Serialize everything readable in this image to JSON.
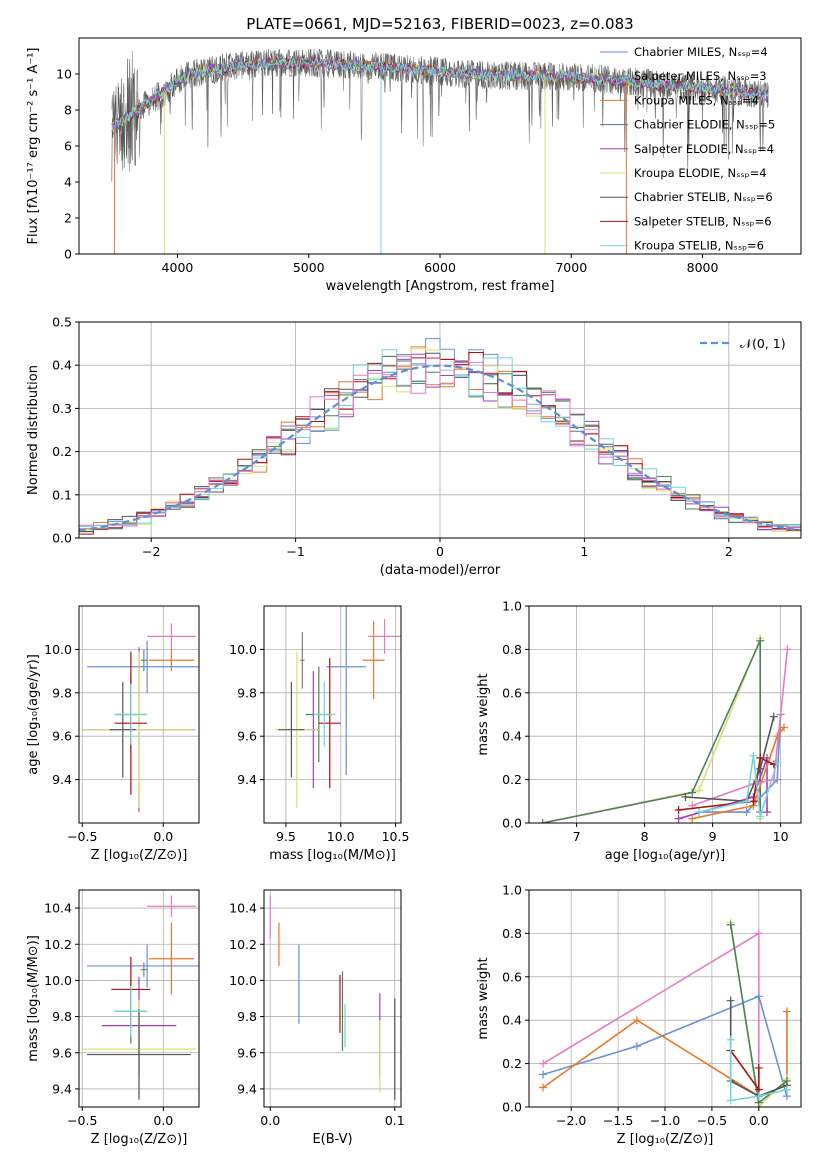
{
  "figure_title": "PLATE=0661, MJD=52163, FIBERID=0023, z=0.083",
  "colors": {
    "chabrier_miles": "#6a8fdc",
    "salpeter_miles": "#808080",
    "kroupa_miles": "#e8782a",
    "chabrier_elodie": "#4f7f5f",
    "salpeter_elodie": "#a040c0",
    "kroupa_elodie": "#d8e070",
    "chabrier_stelib": "#555555",
    "salpeter_stelib": "#b01010",
    "kroupa_stelib": "#6fd6d8",
    "pink": "#e87ac0",
    "normal": "#5b8fd6"
  },
  "chart_data": [
    {
      "id": "spectrum",
      "type": "line",
      "xlabel": "wavelength [Angstrom, rest frame]",
      "ylabel": "Flux [fλ10⁻¹⁷ erg cm⁻² s⁻¹ A⁻¹]",
      "xlim": [
        3250,
        8750
      ],
      "ylim": [
        0,
        12
      ],
      "xticks": [
        "4000",
        "5000",
        "6000",
        "7000",
        "8000"
      ],
      "yticks": [
        "0",
        "2",
        "4",
        "6",
        "8",
        "10"
      ],
      "legend_position": "top-right",
      "legend": [
        "Chabrier MILES, N_SSP=4",
        "Salpeter MILES, N_SSP=3",
        "Kroupa MILES, N_SSP=4",
        "Chabrier ELODIE, N_SSP=5",
        "Salpeter ELODIE, N_SSP=4",
        "Kroupa ELODIE, N_SSP=4",
        "Chabrier STELIB, N_SSP=6",
        "Salpeter STELIB, N_SSP=6",
        "Kroupa STELIB, N_SSP=6"
      ],
      "continuum": {
        "wavelength": [
          3500,
          3700,
          3900,
          4000,
          4100,
          4300,
          4500,
          4700,
          5000,
          5300,
          5600,
          5900,
          6200,
          6500,
          6800,
          7100,
          7400,
          7700,
          8000,
          8300,
          8500
        ],
        "flux": [
          7.0,
          8.0,
          9.0,
          9.6,
          10.0,
          10.3,
          10.5,
          10.6,
          10.6,
          10.5,
          10.4,
          10.2,
          10.0,
          9.9,
          9.9,
          9.8,
          9.6,
          9.4,
          9.2,
          9.0,
          8.8
        ]
      }
    },
    {
      "id": "residuals",
      "type": "bar",
      "xlabel": "(data-model)/error",
      "ylabel": "Normed distribution",
      "xlim": [
        -2.5,
        2.5
      ],
      "ylim": [
        0,
        0.5
      ],
      "xticks": [
        "−2",
        "−1",
        "0",
        "1",
        "2"
      ],
      "yticks": [
        "0.0",
        "0.1",
        "0.2",
        "0.3",
        "0.4",
        "0.5"
      ],
      "grid": true,
      "legend_position": "top-right",
      "legend": [
        "𝒩(0, 1)"
      ],
      "bins": [
        -2.5,
        2.5,
        50
      ],
      "normal_curve": {
        "mean": 0,
        "sigma": 1
      }
    },
    {
      "id": "age_vs_Z",
      "type": "scatter",
      "xlabel": "Z [log₁₀(Z/Z⊙)]",
      "ylabel": "age  [log₁₀(age/yr)]",
      "xlim": [
        -0.52,
        0.22
      ],
      "ylim": [
        9.2,
        10.2
      ],
      "xticks": [
        "−0.5",
        "0.0"
      ],
      "yticks": [
        "9.4",
        "9.6",
        "9.8",
        "10.0"
      ],
      "grid": true,
      "points": [
        {
          "x": -0.1,
          "y": 9.92,
          "xerr": 0.37,
          "yerr": 0.12,
          "c": "chabrier_miles"
        },
        {
          "x": 0.05,
          "y": 9.95,
          "xerr": 0.14,
          "yerr": 0.05,
          "c": "kroupa_miles"
        },
        {
          "x": -0.12,
          "y": 9.95,
          "xerr": 0.02,
          "yerr": 0.05,
          "c": "salpeter_miles"
        },
        {
          "x": -0.2,
          "y": 9.7,
          "xerr": 0.1,
          "yerr": 0.18,
          "c": "chabrier_elodie"
        },
        {
          "x": -0.15,
          "y": 9.63,
          "xerr": 0.35,
          "yerr": 0.38,
          "c": "salpeter_elodie"
        },
        {
          "x": -0.15,
          "y": 9.63,
          "xerr": 0.35,
          "yerr": 0.36,
          "c": "kroupa_elodie"
        },
        {
          "x": -0.25,
          "y": 9.63,
          "xerr": 0.08,
          "yerr": 0.22,
          "c": "chabrier_stelib"
        },
        {
          "x": -0.2,
          "y": 9.66,
          "xerr": 0.1,
          "yerr": 0.33,
          "c": "salpeter_stelib"
        },
        {
          "x": -0.2,
          "y": 9.7,
          "xerr": 0.1,
          "yerr": 0.14,
          "c": "kroupa_stelib"
        },
        {
          "x": 0.05,
          "y": 10.06,
          "xerr": 0.15,
          "yerr": 0.06,
          "c": "pink"
        }
      ]
    },
    {
      "id": "age_vs_mass",
      "type": "scatter",
      "xlabel": "mass [log₁₀(M/M⊙)]",
      "ylabel": "",
      "xlim": [
        9.3,
        10.55
      ],
      "ylim": [
        9.2,
        10.2
      ],
      "xticks": [
        "9.5",
        "10.0",
        "10.5"
      ],
      "yticks": [
        "9.4",
        "9.6",
        "9.8",
        "10.0"
      ],
      "grid": true,
      "points": [
        {
          "x": 10.05,
          "y": 9.92,
          "xerr": 0.18,
          "yerr": 0.5,
          "c": "chabrier_miles"
        },
        {
          "x": 10.3,
          "y": 9.95,
          "xerr": 0.1,
          "yerr": 0.18,
          "c": "kroupa_miles"
        },
        {
          "x": 9.65,
          "y": 9.95,
          "xerr": 0.02,
          "yerr": 0.13,
          "c": "salpeter_miles"
        },
        {
          "x": 9.8,
          "y": 9.7,
          "xerr": 0.12,
          "yerr": 0.22,
          "c": "chabrier_elodie"
        },
        {
          "x": 9.75,
          "y": 9.63,
          "xerr": 0.05,
          "yerr": 0.27,
          "c": "salpeter_elodie"
        },
        {
          "x": 9.6,
          "y": 9.63,
          "xerr": 0.2,
          "yerr": 0.36,
          "c": "kroupa_elodie"
        },
        {
          "x": 9.55,
          "y": 9.63,
          "xerr": 0.12,
          "yerr": 0.22,
          "c": "chabrier_stelib"
        },
        {
          "x": 9.9,
          "y": 9.66,
          "xerr": 0.1,
          "yerr": 0.3,
          "c": "salpeter_stelib"
        },
        {
          "x": 9.85,
          "y": 9.7,
          "xerr": 0.1,
          "yerr": 0.15,
          "c": "kroupa_stelib"
        },
        {
          "x": 10.4,
          "y": 10.06,
          "xerr": 0.15,
          "yerr": 0.08,
          "c": "pink"
        }
      ]
    },
    {
      "id": "weight_vs_age",
      "type": "line",
      "xlabel": "age  [log₁₀(age/yr)]",
      "ylabel": "mass weight",
      "xlim": [
        6.3,
        10.3
      ],
      "ylim": [
        0,
        1
      ],
      "xticks": [
        "7",
        "8",
        "9",
        "10"
      ],
      "yticks": [
        "0.0",
        "0.2",
        "0.4",
        "0.6",
        "0.8",
        "1.0"
      ],
      "grid": true,
      "series": [
        {
          "c": "kroupa_elodie",
          "x": [
            6.5,
            8.8,
            9.7,
            9.7
          ],
          "y": [
            0.0,
            0.15,
            0.85,
            0.02
          ]
        },
        {
          "c": "chabrier_elodie",
          "x": [
            6.5,
            8.7,
            9.7,
            9.7
          ],
          "y": [
            0.0,
            0.14,
            0.84,
            0.05
          ]
        },
        {
          "c": "salpeter_elodie",
          "x": [
            8.5,
            9.6,
            9.8,
            9.8
          ],
          "y": [
            0.02,
            0.12,
            0.3,
            0.05
          ]
        },
        {
          "c": "chabrier_miles",
          "x": [
            8.8,
            9.5,
            9.95,
            10.0
          ],
          "y": [
            0.05,
            0.05,
            0.2,
            0.5
          ]
        },
        {
          "c": "kroupa_miles",
          "x": [
            8.7,
            9.6,
            9.95,
            10.05
          ],
          "y": [
            0.02,
            0.08,
            0.4,
            0.44
          ]
        },
        {
          "c": "pink",
          "x": [
            8.7,
            9.6,
            9.9,
            10.1
          ],
          "y": [
            0.08,
            0.18,
            0.2,
            0.8
          ]
        },
        {
          "c": "salpeter_stelib",
          "x": [
            8.5,
            9.6,
            9.7,
            9.9
          ],
          "y": [
            0.06,
            0.1,
            0.3,
            0.27
          ]
        },
        {
          "c": "chabrier_stelib",
          "x": [
            8.6,
            9.5,
            9.7,
            9.9
          ],
          "y": [
            0.12,
            0.1,
            0.25,
            0.49
          ]
        },
        {
          "c": "kroupa_stelib",
          "x": [
            8.8,
            9.5,
            9.6,
            9.7,
            9.95
          ],
          "y": [
            0.05,
            0.1,
            0.31,
            0.03,
            0.28
          ]
        }
      ]
    },
    {
      "id": "mass_vs_Z",
      "type": "scatter",
      "xlabel": "Z [log₁₀(Z/Z⊙)]",
      "ylabel": "mass [log₁₀(M/M⊙)]",
      "xlim": [
        -0.52,
        0.22
      ],
      "ylim": [
        9.3,
        10.5
      ],
      "xticks": [
        "−0.5",
        "0.0"
      ],
      "yticks": [
        "9.4",
        "9.6",
        "9.8",
        "10.0",
        "10.2",
        "10.4"
      ],
      "grid": true,
      "points": [
        {
          "x": -0.1,
          "y": 10.08,
          "xerr": 0.37,
          "yerr": 0.12,
          "c": "chabrier_miles"
        },
        {
          "x": 0.05,
          "y": 10.12,
          "xerr": 0.14,
          "yerr": 0.2,
          "c": "kroupa_miles"
        },
        {
          "x": -0.12,
          "y": 10.06,
          "xerr": 0.02,
          "yerr": 0.04,
          "c": "salpeter_miles"
        },
        {
          "x": -0.2,
          "y": 9.83,
          "xerr": 0.1,
          "yerr": 0.18,
          "c": "chabrier_elodie"
        },
        {
          "x": -0.15,
          "y": 9.75,
          "xerr": 0.23,
          "yerr": 0.27,
          "c": "salpeter_elodie"
        },
        {
          "x": -0.15,
          "y": 9.62,
          "xerr": 0.35,
          "yerr": 0.27,
          "c": "kroupa_elodie"
        },
        {
          "x": -0.15,
          "y": 9.59,
          "xerr": 0.32,
          "yerr": 0.25,
          "c": "chabrier_stelib"
        },
        {
          "x": -0.2,
          "y": 9.95,
          "xerr": 0.12,
          "yerr": 0.18,
          "c": "salpeter_stelib"
        },
        {
          "x": -0.2,
          "y": 9.83,
          "xerr": 0.1,
          "yerr": 0.14,
          "c": "kroupa_stelib"
        },
        {
          "x": 0.05,
          "y": 10.41,
          "xerr": 0.15,
          "yerr": 0.06,
          "c": "pink"
        }
      ]
    },
    {
      "id": "mass_vs_EBV",
      "type": "scatter",
      "xlabel": "E(B-V)",
      "ylabel": "",
      "xlim": [
        -0.005,
        0.105
      ],
      "ylim": [
        9.3,
        10.5
      ],
      "xticks": [
        "0.0",
        "0.1"
      ],
      "yticks": [
        "9.4",
        "9.6",
        "9.8",
        "10.0",
        "10.2",
        "10.4"
      ],
      "grid": true,
      "points": [
        {
          "x": 0.0,
          "y": 10.35,
          "yerr": 0.12,
          "c": "pink"
        },
        {
          "x": 0.007,
          "y": 10.2,
          "yerr": 0.12,
          "c": "kroupa_miles"
        },
        {
          "x": 0.023,
          "y": 9.98,
          "yerr": 0.22,
          "c": "chabrier_miles"
        },
        {
          "x": 0.056,
          "y": 9.87,
          "yerr": 0.16,
          "c": "salpeter_stelib"
        },
        {
          "x": 0.058,
          "y": 9.83,
          "yerr": 0.22,
          "c": "chabrier_elodie"
        },
        {
          "x": 0.06,
          "y": 9.75,
          "yerr": 0.12,
          "c": "kroupa_stelib"
        },
        {
          "x": 0.088,
          "y": 9.7,
          "yerr": 0.23,
          "c": "salpeter_elodie"
        },
        {
          "x": 0.088,
          "y": 9.58,
          "yerr": 0.2,
          "c": "kroupa_elodie"
        },
        {
          "x": 0.1,
          "y": 9.62,
          "yerr": 0.28,
          "c": "chabrier_stelib"
        }
      ]
    },
    {
      "id": "weight_vs_Z",
      "type": "line",
      "xlabel": "Z [log₁₀(Z/Z⊙)]",
      "ylabel": "mass weight",
      "xlim": [
        -2.45,
        0.45
      ],
      "ylim": [
        0,
        1
      ],
      "xticks": [
        "−2.0",
        "−1.5",
        "−1.0",
        "−0.5",
        "0.0"
      ],
      "yticks": [
        "0.0",
        "0.2",
        "0.4",
        "0.6",
        "0.8",
        "1.0"
      ],
      "grid": true,
      "series": [
        {
          "c": "pink",
          "x": [
            -2.3,
            0.0,
            0.0
          ],
          "y": [
            0.2,
            0.8,
            0.05
          ]
        },
        {
          "c": "chabrier_miles",
          "x": [
            -2.3,
            -1.3,
            0.0,
            0.3
          ],
          "y": [
            0.15,
            0.28,
            0.51,
            0.05
          ]
        },
        {
          "c": "kroupa_miles",
          "x": [
            -2.3,
            -1.3,
            0.0,
            0.3,
            0.3
          ],
          "y": [
            0.09,
            0.4,
            0.05,
            0.1,
            0.44
          ]
        },
        {
          "c": "kroupa_elodie",
          "x": [
            -0.3,
            0.0,
            0.3
          ],
          "y": [
            0.85,
            0.0,
            0.13
          ]
        },
        {
          "c": "chabrier_elodie",
          "x": [
            -0.3,
            0.0,
            0.3
          ],
          "y": [
            0.84,
            0.02,
            0.12
          ]
        },
        {
          "c": "salpeter_stelib",
          "x": [
            -0.3,
            0.0,
            0.0
          ],
          "y": [
            0.26,
            0.08,
            0.18
          ]
        },
        {
          "c": "chabrier_stelib",
          "x": [
            -0.3,
            -0.3,
            0.0,
            0.3
          ],
          "y": [
            0.49,
            0.12,
            0.05,
            0.1
          ]
        },
        {
          "c": "kroupa_stelib",
          "x": [
            -0.3,
            -0.3,
            0.0,
            0.3
          ],
          "y": [
            0.31,
            0.03,
            0.05,
            0.08
          ]
        }
      ]
    }
  ]
}
